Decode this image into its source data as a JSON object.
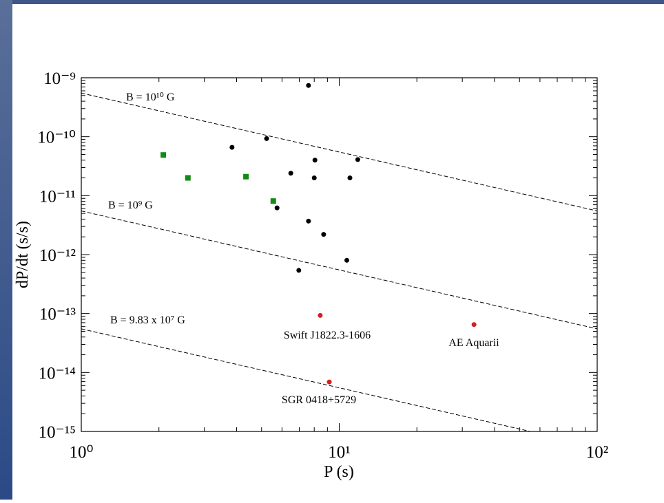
{
  "chart_data": {
    "type": "scatter",
    "log_x": true,
    "log_y": true,
    "xlabel": "P (s)",
    "ylabel": "dP/dt (s/s)",
    "xlim": [
      1,
      100
    ],
    "xticks": [
      {
        "value": 1,
        "label": "10⁰"
      },
      {
        "value": 10,
        "label": "10¹"
      },
      {
        "value": 100,
        "label": "10²"
      }
    ],
    "ylim": [
      1e-15,
      1e-09
    ],
    "yticks": [
      {
        "value": 1e-15,
        "label": "10⁻¹⁵"
      },
      {
        "value": 1e-14,
        "label": "10⁻¹⁴"
      },
      {
        "value": 1e-13,
        "label": "10⁻¹³"
      },
      {
        "value": 1e-12,
        "label": "10⁻¹²"
      },
      {
        "value": 1e-11,
        "label": "10⁻¹¹"
      },
      {
        "value": 1e-10,
        "label": "10⁻¹⁰"
      },
      {
        "value": 1e-09,
        "label": "10⁻⁹"
      }
    ],
    "series": [
      {
        "color": "#000000",
        "marker": "circle",
        "x": [
          7.6,
          3.84,
          5.23,
          8.05,
          11.8,
          6.49,
          8.0,
          11.0,
          5.74,
          7.6,
          8.7,
          10.7,
          6.97
        ],
        "values": [
          7.4e-10,
          6.6e-11,
          9.3e-11,
          4e-11,
          4.1e-11,
          2.4e-11,
          2e-11,
          2e-11,
          6.2e-12,
          3.7e-12,
          2.2e-12,
          8e-13,
          5.4e-13
        ]
      },
      {
        "color": "#138a13",
        "marker": "square",
        "x": [
          2.08,
          2.59,
          4.35,
          5.55
        ],
        "values": [
          4.9e-11,
          2e-11,
          2.1e-11,
          8.1e-12
        ]
      },
      {
        "color": "#d42020",
        "marker": "circle",
        "x": [
          8.44,
          33.3,
          9.15
        ],
        "values": [
          9.3e-14,
          6.5e-14,
          6.9e-15
        ]
      }
    ],
    "lines": [
      {
        "label": "B = 10¹⁰ G",
        "x": [
          1,
          100
        ],
        "values": [
          5.5e-10,
          5.5e-12
        ]
      },
      {
        "label": "B = 10⁹ G",
        "x": [
          1,
          100
        ],
        "values": [
          5.5e-12,
          5.5e-14
        ]
      },
      {
        "label": "B = 9.83 x 10⁷ G",
        "x": [
          1,
          55
        ],
        "values": [
          5.5e-14,
          1e-15
        ]
      }
    ],
    "annotations": [
      "Swift J1822.3-1606",
      "AE Aquarii",
      "SGR 0418+5729"
    ]
  }
}
